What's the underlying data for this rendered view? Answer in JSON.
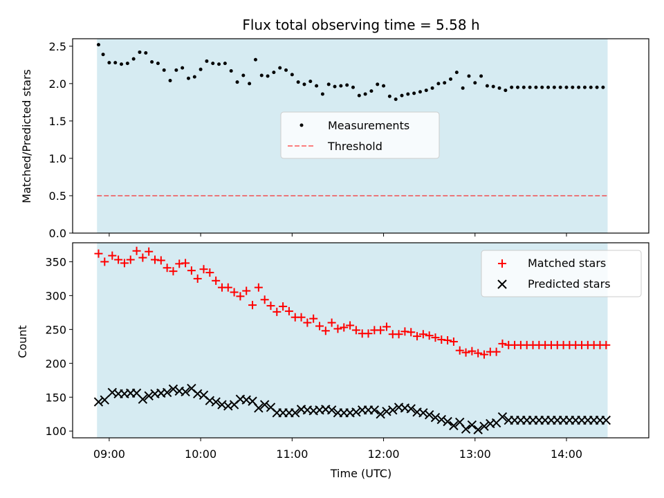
{
  "chart_data": [
    {
      "type": "scatter",
      "title": "Flux total observing time = 5.58 h",
      "xlabel": "",
      "ylabel": "Matched/Predicted stars",
      "xlim": [
        "08:36",
        "14:54"
      ],
      "ylim": [
        0,
        2.6
      ],
      "yticks": [
        0.0,
        0.5,
        1.0,
        1.5,
        2.0,
        2.5
      ],
      "ytick_labels": [
        "0.0",
        "0.5",
        "1.0",
        "1.5",
        "2.0",
        "2.5"
      ],
      "shaded_span": [
        "08:52",
        "14:27"
      ],
      "shaded_color": "#add8e6",
      "legend": {
        "position": "center",
        "entries": [
          "Measurements",
          "Threshold"
        ]
      },
      "series": [
        {
          "name": "Measurements",
          "marker": "point",
          "color": "#000000",
          "x": [
            "08:53",
            "08:56",
            "09:00",
            "09:04",
            "09:08",
            "09:12",
            "09:16",
            "09:20",
            "09:24",
            "09:28",
            "09:32",
            "09:36",
            "09:40",
            "09:44",
            "09:48",
            "09:52",
            "09:56",
            "10:00",
            "10:04",
            "10:08",
            "10:12",
            "10:16",
            "10:20",
            "10:24",
            "10:28",
            "10:32",
            "10:36",
            "10:40",
            "10:44",
            "10:48",
            "10:52",
            "10:56",
            "11:00",
            "11:04",
            "11:08",
            "11:12",
            "11:16",
            "11:20",
            "11:24",
            "11:28",
            "11:32",
            "11:36",
            "11:40",
            "11:44",
            "11:48",
            "11:52",
            "11:56",
            "12:00",
            "12:04",
            "12:08",
            "12:12",
            "12:16",
            "12:20",
            "12:24",
            "12:28",
            "12:32",
            "12:36",
            "12:40",
            "12:44",
            "12:48",
            "12:52",
            "12:56",
            "13:00",
            "13:04",
            "13:08",
            "13:12",
            "13:16",
            "13:20",
            "13:24",
            "13:28",
            "13:32",
            "13:36",
            "13:40",
            "13:44",
            "13:48",
            "13:52",
            "13:56",
            "14:00",
            "14:04",
            "14:08",
            "14:12",
            "14:16",
            "14:20",
            "14:24"
          ],
          "y": [
            2.52,
            2.39,
            2.28,
            2.28,
            2.26,
            2.27,
            2.33,
            2.42,
            2.41,
            2.29,
            2.27,
            2.18,
            2.04,
            2.18,
            2.21,
            2.07,
            2.09,
            2.19,
            2.3,
            2.27,
            2.26,
            2.27,
            2.17,
            2.02,
            2.11,
            2.0,
            2.32,
            2.11,
            2.1,
            2.15,
            2.21,
            2.18,
            2.12,
            2.02,
            1.99,
            2.03,
            1.97,
            1.86,
            1.99,
            1.96,
            1.97,
            1.98,
            1.95,
            1.84,
            1.86,
            1.9,
            1.99,
            1.97,
            1.83,
            1.79,
            1.84,
            1.86,
            1.87,
            1.89,
            1.91,
            1.94,
            2.0,
            2.01,
            2.06,
            2.15,
            1.94,
            2.1,
            2.01,
            2.1,
            1.97,
            1.96,
            1.94,
            1.91,
            1.95,
            1.95,
            1.95,
            1.95,
            1.95,
            1.95,
            1.95,
            1.95,
            1.95,
            1.95,
            1.95,
            1.95,
            1.95,
            1.95,
            1.95,
            1.95
          ]
        },
        {
          "name": "Threshold",
          "style": "dashed",
          "color": "#ff0000",
          "y": 0.5
        }
      ]
    },
    {
      "type": "scatter",
      "title": "",
      "xlabel": "Time (UTC)",
      "ylabel": "Count",
      "xlim": [
        "08:36",
        "14:54"
      ],
      "ylim": [
        90,
        378
      ],
      "yticks": [
        100,
        150,
        200,
        250,
        300,
        350
      ],
      "ytick_labels": [
        "100",
        "150",
        "200",
        "250",
        "300",
        "350"
      ],
      "xticks": [
        "09:00",
        "10:00",
        "11:00",
        "12:00",
        "13:00",
        "14:00"
      ],
      "xtick_labels": [
        "09:00",
        "10:00",
        "11:00",
        "12:00",
        "13:00",
        "14:00"
      ],
      "shaded_span": [
        "08:52",
        "14:27"
      ],
      "shaded_color": "#add8e6",
      "legend": {
        "position": "top-right",
        "entries": [
          "Matched stars",
          "Predicted stars"
        ]
      },
      "series": [
        {
          "name": "Matched stars",
          "marker": "plus",
          "color": "#ff0000",
          "x": [
            "08:53",
            "08:57",
            "09:02",
            "09:06",
            "09:10",
            "09:14",
            "09:18",
            "09:22",
            "09:26",
            "09:30",
            "09:34",
            "09:38",
            "09:42",
            "09:46",
            "09:50",
            "09:54",
            "09:58",
            "10:02",
            "10:06",
            "10:10",
            "10:14",
            "10:18",
            "10:22",
            "10:26",
            "10:30",
            "10:34",
            "10:38",
            "10:42",
            "10:46",
            "10:50",
            "10:54",
            "10:58",
            "11:02",
            "11:06",
            "11:10",
            "11:14",
            "11:18",
            "11:22",
            "11:26",
            "11:30",
            "11:34",
            "11:38",
            "11:42",
            "11:46",
            "11:50",
            "11:54",
            "11:58",
            "12:02",
            "12:06",
            "12:10",
            "12:14",
            "12:18",
            "12:22",
            "12:26",
            "12:30",
            "12:34",
            "12:38",
            "12:42",
            "12:46",
            "12:50",
            "12:54",
            "12:58",
            "13:02",
            "13:06",
            "13:10",
            "13:14",
            "13:18",
            "13:22",
            "13:26",
            "13:30",
            "13:34",
            "13:38",
            "13:42",
            "13:46",
            "13:50",
            "13:54",
            "13:58",
            "14:02",
            "14:06",
            "14:10",
            "14:14",
            "14:18",
            "14:22",
            "14:26"
          ],
          "y": [
            362,
            350,
            359,
            353,
            348,
            353,
            366,
            356,
            365,
            353,
            352,
            341,
            336,
            347,
            348,
            337,
            325,
            339,
            334,
            322,
            312,
            312,
            305,
            299,
            307,
            286,
            312,
            294,
            285,
            276,
            284,
            277,
            268,
            268,
            260,
            266,
            255,
            248,
            260,
            251,
            253,
            256,
            249,
            244,
            244,
            249,
            249,
            254,
            243,
            243,
            247,
            246,
            240,
            243,
            241,
            238,
            235,
            234,
            232,
            219,
            216,
            218,
            215,
            213,
            217,
            217,
            229,
            227,
            227,
            227,
            227,
            227,
            227,
            227,
            227,
            227,
            227,
            227,
            227,
            227,
            227,
            227,
            227,
            227
          ]
        },
        {
          "name": "Predicted stars",
          "marker": "x",
          "color": "#000000",
          "x": [
            "08:53",
            "08:57",
            "09:02",
            "09:06",
            "09:10",
            "09:14",
            "09:18",
            "09:22",
            "09:26",
            "09:30",
            "09:34",
            "09:38",
            "09:42",
            "09:46",
            "09:50",
            "09:54",
            "09:58",
            "10:02",
            "10:06",
            "10:10",
            "10:14",
            "10:18",
            "10:22",
            "10:26",
            "10:30",
            "10:34",
            "10:38",
            "10:42",
            "10:46",
            "10:50",
            "10:54",
            "10:58",
            "11:02",
            "11:06",
            "11:10",
            "11:14",
            "11:18",
            "11:22",
            "11:26",
            "11:30",
            "11:34",
            "11:38",
            "11:42",
            "11:46",
            "11:50",
            "11:54",
            "11:58",
            "12:02",
            "12:06",
            "12:10",
            "12:14",
            "12:18",
            "12:22",
            "12:26",
            "12:30",
            "12:34",
            "12:38",
            "12:42",
            "12:46",
            "12:50",
            "12:54",
            "12:58",
            "13:02",
            "13:06",
            "13:10",
            "13:14",
            "13:18",
            "13:22",
            "13:26",
            "13:30",
            "13:34",
            "13:38",
            "13:42",
            "13:46",
            "13:50",
            "13:54",
            "13:58",
            "14:02",
            "14:06",
            "14:10",
            "14:14",
            "14:18",
            "14:22",
            "14:26"
          ],
          "y": [
            143,
            146,
            157,
            155,
            155,
            156,
            156,
            147,
            152,
            155,
            156,
            157,
            162,
            159,
            158,
            163,
            155,
            153,
            145,
            143,
            139,
            137,
            139,
            147,
            146,
            144,
            134,
            139,
            135,
            127,
            127,
            127,
            127,
            132,
            131,
            130,
            131,
            132,
            131,
            127,
            127,
            127,
            128,
            131,
            131,
            131,
            125,
            129,
            131,
            135,
            134,
            133,
            128,
            127,
            124,
            120,
            117,
            114,
            108,
            113,
            103,
            109,
            102,
            107,
            111,
            112,
            121,
            116,
            116,
            116,
            116,
            116,
            116,
            116,
            116,
            116,
            116,
            116,
            116,
            116,
            116,
            116,
            116,
            116
          ]
        }
      ]
    }
  ]
}
